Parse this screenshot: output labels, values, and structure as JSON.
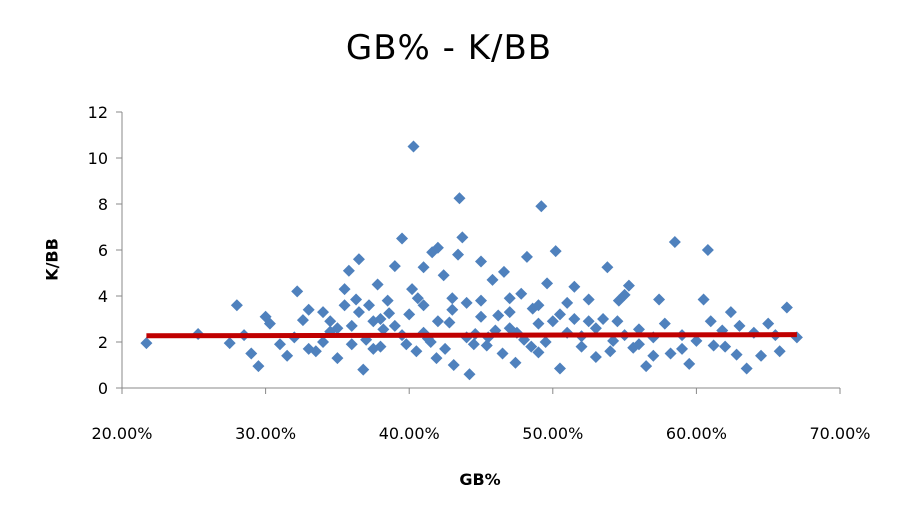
{
  "chart_data": {
    "type": "scatter",
    "title": "GB% - K/BB",
    "xlabel": "GB%",
    "ylabel": "K/BB",
    "xlim": [
      0.2,
      0.7
    ],
    "ylim": [
      0,
      12
    ],
    "x_ticks": [
      0.2,
      0.3,
      0.4,
      0.5,
      0.6,
      0.7
    ],
    "x_tick_labels": [
      "20.00%",
      "30.00%",
      "40.00%",
      "50.00%",
      "60.00%",
      "70.00%"
    ],
    "y_ticks": [
      0,
      2,
      4,
      6,
      8,
      10,
      12
    ],
    "y_tick_labels": [
      "0",
      "2",
      "4",
      "6",
      "8",
      "10",
      "12"
    ],
    "grid": false,
    "legend": "none",
    "series": [
      {
        "marker": "diamond",
        "color": "#4f81bd",
        "points": [
          [
            0.217,
            1.95
          ],
          [
            0.253,
            2.35
          ],
          [
            0.275,
            1.95
          ],
          [
            0.28,
            3.6
          ],
          [
            0.285,
            2.3
          ],
          [
            0.29,
            1.5
          ],
          [
            0.295,
            0.95
          ],
          [
            0.3,
            3.1
          ],
          [
            0.303,
            2.8
          ],
          [
            0.31,
            1.9
          ],
          [
            0.315,
            1.4
          ],
          [
            0.32,
            2.2
          ],
          [
            0.322,
            4.2
          ],
          [
            0.326,
            2.95
          ],
          [
            0.33,
            3.4
          ],
          [
            0.335,
            1.6
          ],
          [
            0.34,
            3.3
          ],
          [
            0.345,
            2.45
          ],
          [
            0.35,
            1.3
          ],
          [
            0.355,
            4.3
          ],
          [
            0.358,
            5.1
          ],
          [
            0.36,
            2.7
          ],
          [
            0.363,
            3.85
          ],
          [
            0.365,
            5.6
          ],
          [
            0.368,
            0.8
          ],
          [
            0.372,
            3.6
          ],
          [
            0.375,
            1.7
          ],
          [
            0.378,
            4.5
          ],
          [
            0.382,
            2.55
          ],
          [
            0.386,
            3.25
          ],
          [
            0.39,
            5.3
          ],
          [
            0.395,
            6.5
          ],
          [
            0.398,
            1.9
          ],
          [
            0.402,
            4.3
          ],
          [
            0.403,
            10.5
          ],
          [
            0.406,
            3.9
          ],
          [
            0.41,
            5.25
          ],
          [
            0.413,
            2.15
          ],
          [
            0.416,
            5.9
          ],
          [
            0.419,
            1.3
          ],
          [
            0.42,
            6.1
          ],
          [
            0.424,
            4.9
          ],
          [
            0.428,
            2.85
          ],
          [
            0.431,
            1.0
          ],
          [
            0.434,
            5.8
          ],
          [
            0.435,
            8.25
          ],
          [
            0.437,
            6.55
          ],
          [
            0.44,
            3.7
          ],
          [
            0.442,
            0.6
          ],
          [
            0.446,
            2.35
          ],
          [
            0.45,
            5.5
          ],
          [
            0.454,
            1.85
          ],
          [
            0.458,
            4.7
          ],
          [
            0.462,
            3.15
          ],
          [
            0.466,
            5.05
          ],
          [
            0.47,
            2.6
          ],
          [
            0.474,
            1.1
          ],
          [
            0.478,
            4.1
          ],
          [
            0.482,
            5.7
          ],
          [
            0.486,
            3.45
          ],
          [
            0.49,
            1.55
          ],
          [
            0.492,
            7.9
          ],
          [
            0.496,
            4.55
          ],
          [
            0.5,
            2.9
          ],
          [
            0.502,
            5.95
          ],
          [
            0.505,
            0.85
          ],
          [
            0.51,
            3.7
          ],
          [
            0.515,
            4.4
          ],
          [
            0.52,
            2.25
          ],
          [
            0.525,
            3.85
          ],
          [
            0.53,
            1.35
          ],
          [
            0.535,
            3.0
          ],
          [
            0.538,
            5.25
          ],
          [
            0.542,
            2.05
          ],
          [
            0.546,
            3.8
          ],
          [
            0.55,
            4.05
          ],
          [
            0.553,
            4.45
          ],
          [
            0.556,
            1.75
          ],
          [
            0.56,
            2.55
          ],
          [
            0.565,
            0.95
          ],
          [
            0.57,
            2.2
          ],
          [
            0.574,
            3.85
          ],
          [
            0.578,
            2.8
          ],
          [
            0.582,
            1.5
          ],
          [
            0.585,
            6.35
          ],
          [
            0.59,
            2.3
          ],
          [
            0.595,
            1.05
          ],
          [
            0.6,
            2.05
          ],
          [
            0.605,
            3.85
          ],
          [
            0.608,
            6.0
          ],
          [
            0.612,
            1.85
          ],
          [
            0.618,
            2.5
          ],
          [
            0.624,
            3.3
          ],
          [
            0.628,
            1.45
          ],
          [
            0.635,
            0.85
          ],
          [
            0.64,
            2.4
          ],
          [
            0.645,
            1.4
          ],
          [
            0.65,
            2.8
          ],
          [
            0.658,
            1.6
          ],
          [
            0.663,
            3.5
          ],
          [
            0.67,
            2.2
          ],
          [
            0.38,
            3.0
          ],
          [
            0.39,
            2.7
          ],
          [
            0.4,
            3.2
          ],
          [
            0.41,
            2.4
          ],
          [
            0.42,
            2.9
          ],
          [
            0.43,
            3.4
          ],
          [
            0.44,
            2.2
          ],
          [
            0.45,
            3.1
          ],
          [
            0.46,
            2.5
          ],
          [
            0.47,
            3.3
          ],
          [
            0.48,
            2.1
          ],
          [
            0.49,
            2.8
          ],
          [
            0.37,
            2.1
          ],
          [
            0.38,
            1.8
          ],
          [
            0.395,
            2.3
          ],
          [
            0.405,
            1.6
          ],
          [
            0.415,
            2.0
          ],
          [
            0.425,
            1.7
          ],
          [
            0.445,
            1.9
          ],
          [
            0.455,
            2.2
          ],
          [
            0.465,
            1.5
          ],
          [
            0.475,
            2.4
          ],
          [
            0.485,
            1.8
          ],
          [
            0.495,
            2.0
          ],
          [
            0.34,
            2.0
          ],
          [
            0.35,
            2.6
          ],
          [
            0.36,
            1.9
          ],
          [
            0.51,
            2.4
          ],
          [
            0.52,
            1.8
          ],
          [
            0.53,
            2.6
          ],
          [
            0.54,
            1.6
          ],
          [
            0.55,
            2.3
          ],
          [
            0.56,
            1.9
          ],
          [
            0.33,
            1.7
          ],
          [
            0.345,
            2.9
          ],
          [
            0.355,
            3.6
          ],
          [
            0.365,
            3.3
          ],
          [
            0.375,
            2.9
          ],
          [
            0.385,
            3.8
          ],
          [
            0.41,
            3.6
          ],
          [
            0.43,
            3.9
          ],
          [
            0.45,
            3.8
          ],
          [
            0.47,
            3.9
          ],
          [
            0.49,
            3.6
          ],
          [
            0.505,
            3.2
          ],
          [
            0.515,
            3.0
          ],
          [
            0.525,
            2.9
          ],
          [
            0.545,
            2.9
          ],
          [
            0.57,
            1.4
          ],
          [
            0.59,
            1.7
          ],
          [
            0.61,
            2.9
          ],
          [
            0.62,
            1.8
          ],
          [
            0.63,
            2.7
          ],
          [
            0.655,
            2.3
          ]
        ]
      }
    ],
    "trendline": {
      "color": "#c00000",
      "x": [
        0.217,
        0.67
      ],
      "y": [
        2.27,
        2.32
      ]
    }
  }
}
